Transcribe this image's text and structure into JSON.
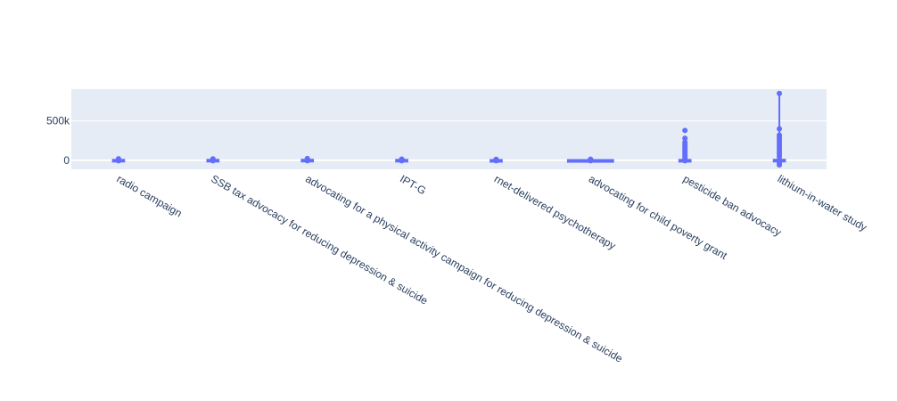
{
  "chart_data": {
    "type": "box",
    "categories": [
      "radio campaign",
      "SSB tax advocacy for reducing depression & suicide",
      "advocating for a physical activity campaign for reducing depression & suicide",
      "IPT-G",
      "rnet-delivered psychotherapy",
      "advocating for child poverty grant",
      "pesticide ban advocacy",
      "lithium-in-water study"
    ],
    "series": [
      {
        "category": "radio campaign",
        "q1": -3000,
        "median": 0,
        "q3": 6000,
        "whisker_low": -18000,
        "whisker_high": 20000,
        "outliers": []
      },
      {
        "category": "SSB tax advocacy for reducing depression & suicide",
        "q1": -4000,
        "median": 0,
        "q3": 6000,
        "whisker_low": -14000,
        "whisker_high": 18000,
        "outliers": []
      },
      {
        "category": "advocating for a physical activity campaign for reducing depression & suicide",
        "q1": -3000,
        "median": 0,
        "q3": 7000,
        "whisker_low": -16000,
        "whisker_high": 22000,
        "outliers": []
      },
      {
        "category": "IPT-G",
        "q1": -3000,
        "median": 0,
        "q3": 6000,
        "whisker_low": -12000,
        "whisker_high": 16000,
        "outliers": []
      },
      {
        "category": "rnet-delivered psychotherapy",
        "q1": -2000,
        "median": 0,
        "q3": 4000,
        "whisker_low": -10000,
        "whisker_high": 12000,
        "outliers": []
      },
      {
        "category": "advocating for child poverty grant",
        "q1": -2000,
        "median": 0,
        "q3": 3000,
        "whisker_low": -12000,
        "whisker_high": 14000,
        "outliers": []
      },
      {
        "category": "pesticide ban advocacy",
        "q1": -2000,
        "median": 0,
        "q3": 5000,
        "whisker_low": -8000,
        "whisker_high": 35000,
        "outliers": [
          50000,
          70000,
          90000,
          110000,
          130000,
          150000,
          170000,
          190000,
          210000,
          230000,
          280000,
          380000
        ]
      },
      {
        "category": "lithium-in-water study",
        "q1": -3000,
        "median": 0,
        "q3": 7000,
        "whisker_low": -70000,
        "whisker_high": 850000,
        "outliers": [
          -60000,
          -40000,
          -25000,
          50000,
          80000,
          110000,
          140000,
          170000,
          200000,
          230000,
          260000,
          290000,
          320000,
          400000
        ]
      }
    ],
    "y_ticks": [
      {
        "value": 0,
        "label": "0"
      },
      {
        "value": 500000,
        "label": "500k"
      }
    ],
    "ylim": [
      -115000,
      905000
    ],
    "grid": true,
    "color": "#636efa",
    "plot_bg": "#e5ecf6",
    "title": "",
    "xlabel": "",
    "ylabel": ""
  }
}
